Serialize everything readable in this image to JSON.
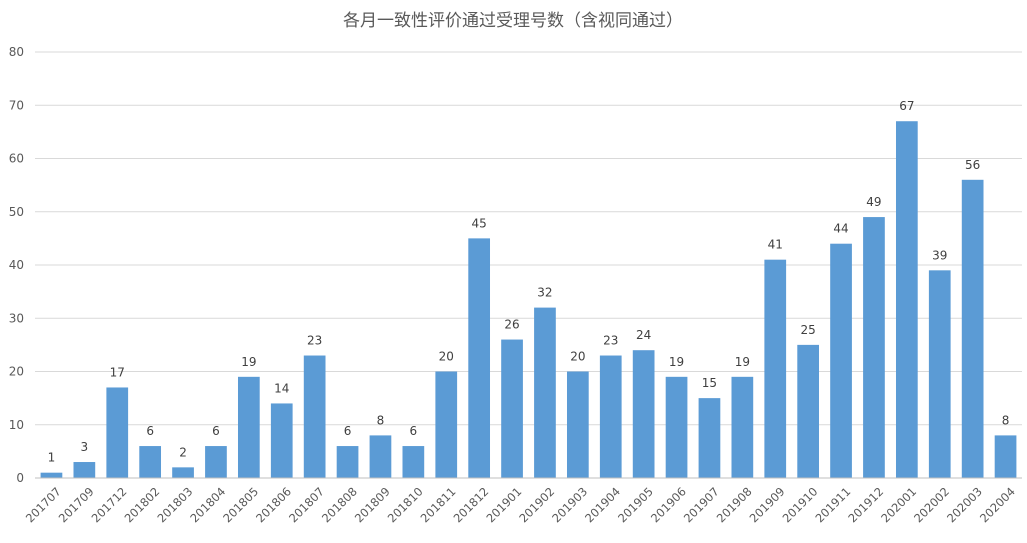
{
  "chart_data": {
    "type": "bar",
    "title": "各月一致性评价通过受理号数（含视同通过）",
    "xlabel": "",
    "ylabel": "",
    "ylim": [
      0,
      80
    ],
    "yticks": [
      0,
      10,
      20,
      30,
      40,
      50,
      60,
      70,
      80
    ],
    "grid": true,
    "legend": "none",
    "bar_color": "#5b9bd5",
    "categories": [
      "201707",
      "201709",
      "201712",
      "201802",
      "201803",
      "201804",
      "201805",
      "201806",
      "201807",
      "201808",
      "201809",
      "201810",
      "201811",
      "201812",
      "201901",
      "201902",
      "201903",
      "201904",
      "201905",
      "201906",
      "201907",
      "201908",
      "201909",
      "201910",
      "201911",
      "201912",
      "202001",
      "202002",
      "202003",
      "202004"
    ],
    "values": [
      1,
      3,
      17,
      6,
      2,
      6,
      19,
      14,
      23,
      6,
      8,
      6,
      20,
      45,
      26,
      32,
      20,
      23,
      24,
      19,
      15,
      19,
      41,
      25,
      44,
      49,
      67,
      39,
      56,
      8
    ]
  }
}
